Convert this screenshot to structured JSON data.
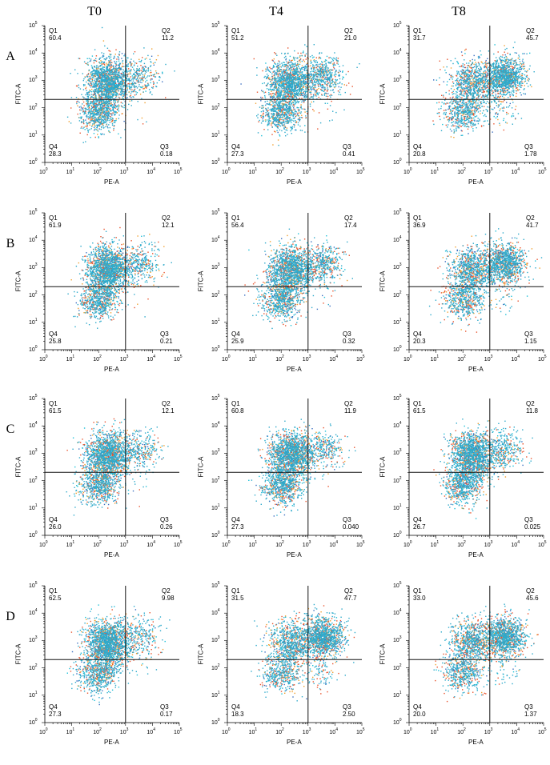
{
  "column_titles": [
    "T0",
    "T4",
    "T8"
  ],
  "row_labels": [
    "A",
    "B",
    "C",
    "D"
  ],
  "chart_data": {
    "type": "scatter",
    "xlabel": "PE-A",
    "ylabel": "FITC-A",
    "x_scale": "log",
    "y_scale": "log",
    "xlim": [
      1,
      100000
    ],
    "ylim": [
      1,
      100000
    ],
    "tick_values": [
      1,
      10,
      100,
      1000,
      10000,
      100000
    ],
    "tick_base": "10",
    "tick_exponents": [
      "0",
      "1",
      "2",
      "3",
      "4",
      "5"
    ],
    "gate_x": 1000,
    "gate_y": 200,
    "quadrant_names": [
      "Q1",
      "Q2",
      "Q3",
      "Q4"
    ],
    "panels": [
      {
        "row": "A",
        "col": "T0",
        "Q1": "60.4",
        "Q2": "11.2",
        "Q3": "0.18",
        "Q4": "28.3"
      },
      {
        "row": "A",
        "col": "T4",
        "Q1": "51.2",
        "Q2": "21.0",
        "Q3": "0.41",
        "Q4": "27.3"
      },
      {
        "row": "A",
        "col": "T8",
        "Q1": "31.7",
        "Q2": "45.7",
        "Q3": "1.78",
        "Q4": "20.8"
      },
      {
        "row": "B",
        "col": "T0",
        "Q1": "61.9",
        "Q2": "12.1",
        "Q3": "0.21",
        "Q4": "25.8"
      },
      {
        "row": "B",
        "col": "T4",
        "Q1": "56.4",
        "Q2": "17.4",
        "Q3": "0.32",
        "Q4": "25.9"
      },
      {
        "row": "B",
        "col": "T8",
        "Q1": "36.9",
        "Q2": "41.7",
        "Q3": "1.15",
        "Q4": "20.3"
      },
      {
        "row": "C",
        "col": "T0",
        "Q1": "61.5",
        "Q2": "12.1",
        "Q3": "0.26",
        "Q4": "26.0"
      },
      {
        "row": "C",
        "col": "T4",
        "Q1": "60.8",
        "Q2": "11.9",
        "Q3": "0.040",
        "Q4": "27.3"
      },
      {
        "row": "C",
        "col": "T8",
        "Q1": "61.5",
        "Q2": "11.8",
        "Q3": "0.025",
        "Q4": "26.7"
      },
      {
        "row": "D",
        "col": "T0",
        "Q1": "62.5",
        "Q2": "9.98",
        "Q3": "0.17",
        "Q4": "27.3"
      },
      {
        "row": "D",
        "col": "T4",
        "Q1": "31.5",
        "Q2": "47.7",
        "Q3": "2.50",
        "Q4": "18.3"
      },
      {
        "row": "D",
        "col": "T8",
        "Q1": "33.0",
        "Q2": "45.6",
        "Q3": "1.37",
        "Q4": "20.0"
      }
    ],
    "point_colors": [
      "#2eaacb",
      "#e8542e",
      "#f0a030",
      "#3a6fc0",
      "#1ec0d8"
    ]
  }
}
